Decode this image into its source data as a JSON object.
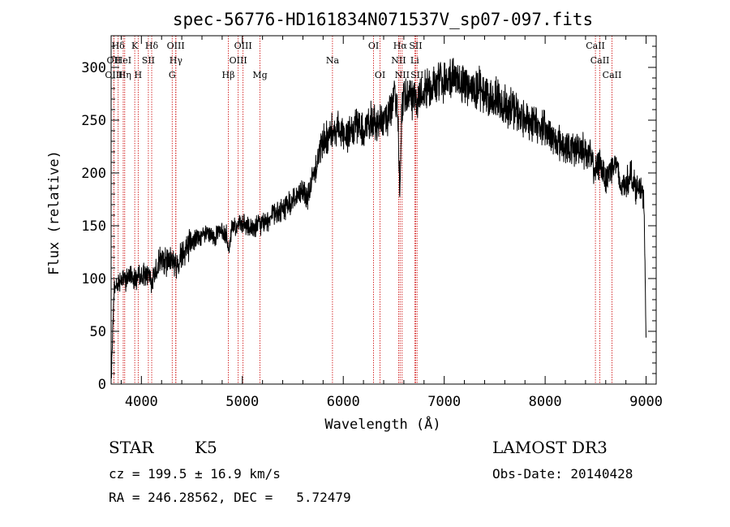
{
  "chart_data": {
    "type": "line",
    "title": "spec-56776-HD161834N071537V_sp07-097.fits",
    "xlabel": "Wavelength (Å)",
    "ylabel": "Flux (relative)",
    "xlim": [
      3700,
      9100
    ],
    "ylim": [
      0,
      330
    ],
    "x_ticks": [
      4000,
      5000,
      6000,
      7000,
      8000,
      9000
    ],
    "y_ticks": [
      0,
      50,
      100,
      150,
      200,
      250,
      300
    ],
    "x_tick_labels": [
      "4000",
      "5000",
      "6000",
      "7000",
      "8000",
      "9000"
    ],
    "y_tick_labels": [
      "0",
      "50",
      "100",
      "150",
      "200",
      "250",
      "300"
    ],
    "spectrum_trend": {
      "x": [
        3700,
        3730,
        3760,
        3800,
        3850,
        3900,
        3950,
        4000,
        4050,
        4100,
        4150,
        4200,
        4250,
        4300,
        4350,
        4400,
        4450,
        4500,
        4550,
        4600,
        4650,
        4700,
        4750,
        4800,
        4850,
        4860,
        4900,
        4950,
        5000,
        5050,
        5100,
        5150,
        5200,
        5250,
        5300,
        5350,
        5400,
        5450,
        5500,
        5550,
        5600,
        5650,
        5700,
        5750,
        5800,
        5850,
        5890,
        5950,
        6000,
        6050,
        6100,
        6150,
        6200,
        6250,
        6300,
        6350,
        6400,
        6450,
        6500,
        6540,
        6560,
        6580,
        6620,
        6660,
        6700,
        6750,
        6800,
        6850,
        6900,
        6950,
        7000,
        7050,
        7100,
        7150,
        7200,
        7250,
        7300,
        7350,
        7400,
        7450,
        7500,
        7550,
        7600,
        7650,
        7700,
        7750,
        7800,
        7850,
        7900,
        7950,
        8000,
        8050,
        8100,
        8150,
        8200,
        8250,
        8300,
        8350,
        8400,
        8450,
        8500,
        8540,
        8600,
        8650,
        8700,
        8750,
        8800,
        8850,
        8900,
        8950,
        8980,
        9000
      ],
      "y": [
        5,
        90,
        95,
        100,
        98,
        105,
        100,
        102,
        105,
        95,
        112,
        118,
        115,
        120,
        110,
        125,
        130,
        135,
        138,
        140,
        142,
        140,
        142,
        145,
        140,
        125,
        150,
        150,
        152,
        148,
        147,
        150,
        152,
        155,
        160,
        162,
        165,
        170,
        175,
        178,
        183,
        178,
        195,
        215,
        230,
        235,
        240,
        245,
        238,
        235,
        240,
        245,
        240,
        250,
        245,
        248,
        250,
        255,
        270,
        265,
        180,
        265,
        272,
        270,
        268,
        270,
        280,
        285,
        282,
        288,
        285,
        292,
        290,
        285,
        288,
        282,
        280,
        280,
        275,
        270,
        272,
        268,
        265,
        262,
        260,
        255,
        252,
        250,
        245,
        245,
        240,
        238,
        232,
        228,
        225,
        222,
        222,
        225,
        220,
        215,
        200,
        210,
        195,
        205,
        210,
        185,
        190,
        200,
        185,
        185,
        170,
        40
      ]
    },
    "spectral_lines": [
      {
        "label": "Hδ",
        "x": 3770,
        "row": 0
      },
      {
        "label": "OII",
        "x": 3727,
        "row": 1
      },
      {
        "label": "OIII",
        "x": 3727,
        "row": 2
      },
      {
        "label": "HeI",
        "x": 3820,
        "row": 1
      },
      {
        "label": "Hη",
        "x": 3835,
        "row": 2
      },
      {
        "label": "K",
        "x": 3934,
        "row": 0
      },
      {
        "label": "H",
        "x": 3968,
        "row": 2
      },
      {
        "label": "SII",
        "x": 4069,
        "row": 1
      },
      {
        "label": "Hδ",
        "x": 4102,
        "row": 0
      },
      {
        "label": "OIII",
        "x": 4340,
        "row": 0
      },
      {
        "label": "Hγ",
        "x": 4342,
        "row": 1
      },
      {
        "label": "G",
        "x": 4305,
        "row": 2
      },
      {
        "label": "Hβ",
        "x": 4861,
        "row": 2
      },
      {
        "label": "OIII",
        "x": 4959,
        "row": 1
      },
      {
        "label": "OIII",
        "x": 5007,
        "row": 0
      },
      {
        "label": "Mg",
        "x": 5175,
        "row": 2
      },
      {
        "label": "Na",
        "x": 5893,
        "row": 1
      },
      {
        "label": "OI",
        "x": 6300,
        "row": 0
      },
      {
        "label": "OI",
        "x": 6364,
        "row": 2
      },
      {
        "label": "Hα",
        "x": 6563,
        "row": 0
      },
      {
        "label": "NII",
        "x": 6548,
        "row": 1
      },
      {
        "label": "NII",
        "x": 6583,
        "row": 2
      },
      {
        "label": "SII",
        "x": 6717,
        "row": 0
      },
      {
        "label": "Li",
        "x": 6708,
        "row": 1
      },
      {
        "label": "SII",
        "x": 6731,
        "row": 2
      },
      {
        "label": "CaII",
        "x": 8498,
        "row": 0
      },
      {
        "label": "CaII",
        "x": 8542,
        "row": 1
      },
      {
        "label": "CaII",
        "x": 8662,
        "row": 2
      }
    ]
  },
  "info": {
    "object_class": "STAR",
    "subclass": "K5",
    "survey": "LAMOST DR3",
    "redshift_text": "cz = 199.5 ± 16.9 km/s",
    "obs_date": "Obs-Date: 20140428",
    "coords": "RA = 246.28562, DEC =   5.72479"
  },
  "colors": {
    "spectrum": "#000000",
    "line_markers": "#cc0000"
  }
}
